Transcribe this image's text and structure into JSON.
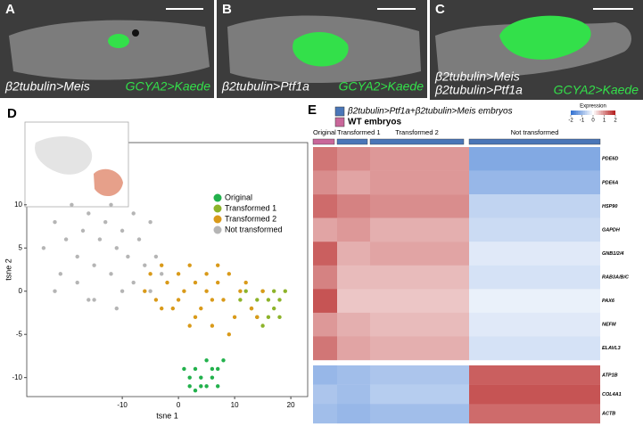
{
  "panels": [
    {
      "label": "A",
      "drivers": [
        "β2tubulin>Meis"
      ],
      "reporter": "GCYA2>Kaede"
    },
    {
      "label": "B",
      "drivers": [
        "β2tubulin>Ptf1a"
      ],
      "reporter": "GCYA2>Kaede"
    },
    {
      "label": "C",
      "drivers": [
        "β2tubulin>Meis",
        "β2tubulin>Ptf1a"
      ],
      "reporter": "GCYA2>Kaede"
    }
  ],
  "chart_data": [
    {
      "type": "scatter",
      "panel_label": "D",
      "xlabel": "tsne 1",
      "ylabel": "tsne 2",
      "xlim": [
        -27,
        23
      ],
      "ylim": [
        -12.2,
        17.2
      ],
      "xticks": [
        -10,
        0,
        10,
        20
      ],
      "yticks": [
        -10,
        -5,
        0,
        5,
        10
      ],
      "legend_position": "upper right",
      "series": [
        {
          "name": "Original",
          "color": "#22b14c",
          "x": [
            1,
            2,
            2,
            3,
            3,
            4,
            4,
            5,
            5,
            6,
            6,
            7,
            7,
            8
          ],
          "y": [
            -9,
            -10,
            -11,
            -9,
            -11.5,
            -10,
            -11,
            -8,
            -11,
            -9,
            -10,
            -11,
            -9,
            -8
          ]
        },
        {
          "name": "Transformed 1",
          "color": "#8db32a",
          "x": [
            11,
            12,
            13,
            14,
            15,
            16,
            16,
            17,
            17,
            18,
            18,
            19,
            14,
            15
          ],
          "y": [
            -1,
            0,
            -2,
            -1,
            0,
            -1,
            -3,
            0,
            -2,
            -1,
            -3,
            0,
            -3,
            -4
          ]
        },
        {
          "name": "Transformed 2",
          "color": "#d99a1a",
          "x": [
            -6,
            -5,
            -4,
            -3,
            -2,
            -1,
            0,
            0,
            1,
            2,
            3,
            3,
            4,
            5,
            5,
            6,
            7,
            7,
            8,
            9,
            10,
            11,
            12,
            13,
            14,
            15,
            2,
            6,
            9,
            -3
          ],
          "y": [
            0,
            2,
            -1,
            3,
            1,
            -2,
            2,
            -1,
            0,
            3,
            -3,
            1,
            -2,
            2,
            0,
            -4,
            1,
            3,
            -1,
            2,
            -3,
            0,
            1,
            -2,
            -3,
            0,
            -4,
            -1,
            -5,
            -2
          ]
        },
        {
          "name": "Not transformed",
          "color": "#b5b5b5",
          "x": [
            -24,
            -22,
            -21,
            -20,
            -19,
            -18,
            -18,
            -17,
            -16,
            -15,
            -15,
            -14,
            -13,
            -12,
            -12,
            -11,
            -10,
            -10,
            -9,
            -8,
            -8,
            -7,
            -6,
            -5,
            -5,
            -4,
            -3,
            -22,
            -16,
            -11
          ],
          "y": [
            5,
            8,
            2,
            6,
            10,
            4,
            1,
            7,
            9,
            3,
            -1,
            6,
            8,
            2,
            10,
            5,
            7,
            0,
            4,
            9,
            1,
            6,
            3,
            8,
            0,
            4,
            2,
            0,
            -1,
            -2
          ]
        }
      ]
    },
    {
      "type": "heatmap",
      "panel_label": "E",
      "legend": [
        {
          "name": "β2tubulin>Ptf1a+β2tubulin>Meis embryos",
          "color": "#4a76b8"
        },
        {
          "name": "WT embryos",
          "color": "#c9679a"
        }
      ],
      "colorbar_title": "Expression",
      "clim": [
        -2,
        2
      ],
      "colorbar_ticks": [
        -2,
        -1,
        0,
        1,
        2
      ],
      "colors": [
        "#2f6fd0",
        "#ffffff",
        "#b31b1b"
      ],
      "column_groups": [
        {
          "name": "Original",
          "color": "#c9679a"
        },
        {
          "name": "Transformed 1",
          "color": "#4a76b8"
        },
        {
          "name": "Transformed 2",
          "color": "#4a76b8"
        },
        {
          "name": "Not transformed",
          "color": "#4a76b8"
        }
      ],
      "rows": [
        "PDE6D",
        "PDE6A",
        "HSP90",
        "GAPDH",
        "GNB1/2/4",
        "RAB3A/B/C",
        "PAX6",
        "NEFM",
        "ELAVL3",
        "ATP1B",
        "COL4A1",
        "ACTB"
      ],
      "values": [
        [
          1.2,
          1.0,
          0.9,
          -1.2
        ],
        [
          1.0,
          0.8,
          0.9,
          -1.0
        ],
        [
          1.3,
          1.1,
          1.0,
          -0.6
        ],
        [
          0.8,
          0.9,
          0.7,
          -0.5
        ],
        [
          1.4,
          0.7,
          0.8,
          -0.3
        ],
        [
          1.1,
          0.6,
          0.6,
          -0.4
        ],
        [
          1.5,
          0.5,
          0.5,
          -0.2
        ],
        [
          0.9,
          0.7,
          0.6,
          -0.3
        ],
        [
          1.2,
          0.8,
          0.7,
          -0.4
        ],
        [
          -1.0,
          -0.9,
          -0.8,
          1.4
        ],
        [
          -0.8,
          -0.9,
          -0.7,
          1.5
        ],
        [
          -0.9,
          -1.0,
          -0.9,
          1.3
        ]
      ]
    }
  ]
}
